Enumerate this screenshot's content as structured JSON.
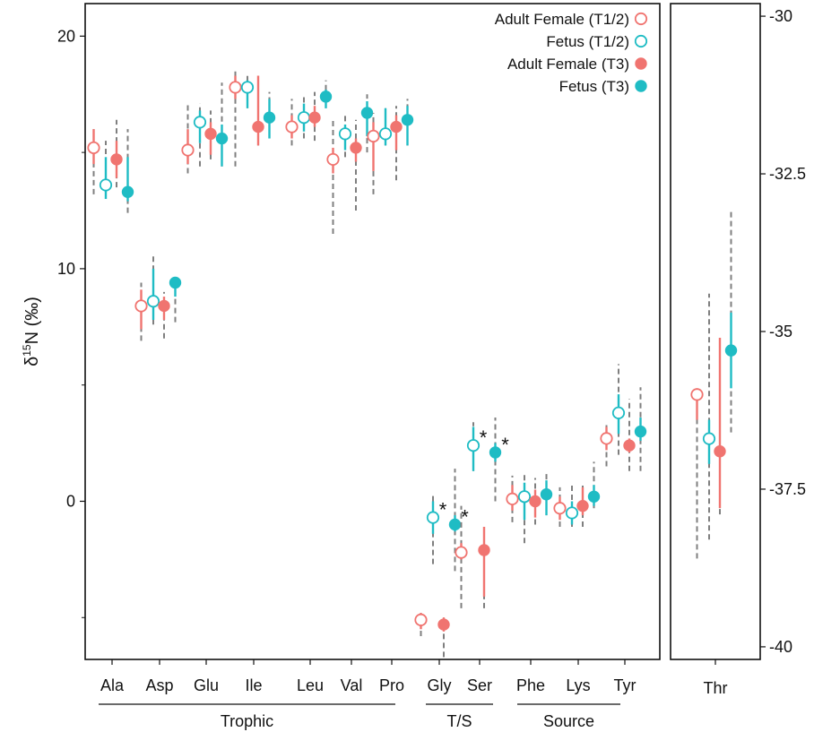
{
  "chart_data": {
    "type": "scatter",
    "ylabel_prefix": "δ",
    "ylabel_sup": "15",
    "ylabel_suffix": "N (‰)",
    "colors": {
      "adult": "#f07470",
      "fetus": "#1fbcc4",
      "range": "#7f7f7f"
    },
    "series": [
      {
        "name": "Adult Female (T1/2)",
        "color": "#f07470",
        "filled": false
      },
      {
        "name": "Fetus (T1/2)",
        "color": "#1fbcc4",
        "filled": false
      },
      {
        "name": "Adult Female (T3)",
        "color": "#f07470",
        "filled": true
      },
      {
        "name": "Fetus (T3)",
        "color": "#1fbcc4",
        "filled": true
      }
    ],
    "left_panel": {
      "ylim": [
        -6.8,
        21.4
      ],
      "yticks": [
        0,
        10,
        20
      ],
      "ytick_labels": [
        "0",
        "10",
        "20"
      ],
      "categories": [
        "Ala",
        "Asp",
        "Glu",
        "Ile",
        "Leu",
        "Val",
        "Pro",
        "Gly",
        "Ser",
        "Phe",
        "Lys",
        "Tyr"
      ],
      "groups": [
        {
          "label": "Trophic",
          "from": 0,
          "to": 6
        },
        {
          "label": "T/S",
          "from": 7,
          "to": 8
        },
        {
          "label": "Source",
          "from": 9,
          "to": 11
        }
      ],
      "points": [
        {
          "cat": 0,
          "s": 0,
          "y": 15.2,
          "lo": 14.5,
          "hi": 16.0,
          "rlo": 13.2,
          "rhi": 16.0
        },
        {
          "cat": 0,
          "s": 1,
          "y": 13.6,
          "lo": 13.0,
          "hi": 14.8,
          "rlo": 13.0,
          "rhi": 15.5
        },
        {
          "cat": 0,
          "s": 2,
          "y": 14.7,
          "lo": 13.9,
          "hi": 15.5,
          "rlo": 13.5,
          "rhi": 16.4
        },
        {
          "cat": 0,
          "s": 3,
          "y": 13.3,
          "lo": 12.9,
          "hi": 14.8,
          "rlo": 12.4,
          "rhi": 16.0
        },
        {
          "cat": 1,
          "s": 0,
          "y": 8.4,
          "lo": 7.4,
          "hi": 9.1,
          "rlo": 6.9,
          "rhi": 9.4
        },
        {
          "cat": 1,
          "s": 1,
          "y": 8.6,
          "lo": 7.8,
          "hi": 10.0,
          "rlo": 7.6,
          "rhi": 10.6
        },
        {
          "cat": 1,
          "s": 2,
          "y": 8.4,
          "lo": 7.8,
          "hi": 8.8,
          "rlo": 7.0,
          "rhi": 9.0
        },
        {
          "cat": 1,
          "s": 3,
          "y": 9.4,
          "lo": 8.8,
          "hi": 9.6,
          "rlo": 7.7,
          "rhi": 9.6
        },
        {
          "cat": 2,
          "s": 0,
          "y": 15.1,
          "lo": 14.5,
          "hi": 16.0,
          "rlo": 14.1,
          "rhi": 17.1
        },
        {
          "cat": 2,
          "s": 1,
          "y": 16.3,
          "lo": 15.4,
          "hi": 16.8,
          "rlo": 14.4,
          "rhi": 17.1
        },
        {
          "cat": 2,
          "s": 2,
          "y": 15.8,
          "lo": 14.9,
          "hi": 16.3,
          "rlo": 14.7,
          "rhi": 16.8
        },
        {
          "cat": 2,
          "s": 3,
          "y": 15.6,
          "lo": 14.4,
          "hi": 16.2,
          "rlo": 14.4,
          "rhi": 18.0
        },
        {
          "cat": 3,
          "s": 0,
          "y": 17.8,
          "lo": 17.3,
          "hi": 18.3,
          "rlo": 14.4,
          "rhi": 18.6
        },
        {
          "cat": 3,
          "s": 1,
          "y": 17.8,
          "lo": 16.9,
          "hi": 18.1,
          "rlo": 16.9,
          "rhi": 18.3
        },
        {
          "cat": 3,
          "s": 2,
          "y": 16.1,
          "lo": 15.3,
          "hi": 18.3,
          "rlo": 15.3,
          "rhi": 18.3
        },
        {
          "cat": 3,
          "s": 3,
          "y": 16.5,
          "lo": 15.6,
          "hi": 17.3,
          "rlo": 15.6,
          "rhi": 17.6
        },
        {
          "cat": 4,
          "s": 0,
          "y": 16.1,
          "lo": 15.6,
          "hi": 16.6,
          "rlo": 15.3,
          "rhi": 17.3
        },
        {
          "cat": 4,
          "s": 1,
          "y": 16.5,
          "lo": 15.9,
          "hi": 17.1,
          "rlo": 15.6,
          "rhi": 17.5
        },
        {
          "cat": 4,
          "s": 2,
          "y": 16.5,
          "lo": 16.1,
          "hi": 17.0,
          "rlo": 15.5,
          "rhi": 17.6
        },
        {
          "cat": 4,
          "s": 3,
          "y": 17.4,
          "lo": 16.9,
          "hi": 17.7,
          "rlo": 16.9,
          "rhi": 18.1
        },
        {
          "cat": 5,
          "s": 0,
          "y": 14.7,
          "lo": 14.1,
          "hi": 15.2,
          "rlo": 11.5,
          "rhi": 16.5
        },
        {
          "cat": 5,
          "s": 1,
          "y": 15.8,
          "lo": 15.1,
          "hi": 16.2,
          "rlo": 14.8,
          "rhi": 16.7
        },
        {
          "cat": 5,
          "s": 2,
          "y": 15.2,
          "lo": 14.6,
          "hi": 15.6,
          "rlo": 12.5,
          "rhi": 16.4
        },
        {
          "cat": 5,
          "s": 3,
          "y": 16.7,
          "lo": 15.7,
          "hi": 17.2,
          "rlo": 15.0,
          "rhi": 17.5
        },
        {
          "cat": 6,
          "s": 0,
          "y": 15.7,
          "lo": 14.2,
          "hi": 16.3,
          "rlo": 13.2,
          "rhi": 16.7
        },
        {
          "cat": 6,
          "s": 1,
          "y": 15.8,
          "lo": 15.3,
          "hi": 16.9,
          "rlo": 15.3,
          "rhi": 16.9
        },
        {
          "cat": 6,
          "s": 2,
          "y": 16.1,
          "lo": 15.1,
          "hi": 16.6,
          "rlo": 13.8,
          "rhi": 17.0
        },
        {
          "cat": 6,
          "s": 3,
          "y": 16.4,
          "lo": 15.3,
          "hi": 17.0,
          "rlo": 15.3,
          "rhi": 17.3
        },
        {
          "cat": 7,
          "s": 0,
          "y": -5.1,
          "lo": -5.5,
          "hi": -4.8,
          "rlo": -5.8,
          "rhi": -4.8
        },
        {
          "cat": 7,
          "s": 1,
          "y": -0.7,
          "lo": -1.4,
          "hi": 0.0,
          "rlo": -2.7,
          "rhi": 0.3
        },
        {
          "cat": 7,
          "s": 2,
          "y": -5.3,
          "lo": -5.6,
          "hi": -5.0,
          "rlo": -6.7,
          "rhi": -5.0
        },
        {
          "cat": 7,
          "s": 3,
          "y": -1.0,
          "lo": -1.3,
          "hi": -0.6,
          "rlo": -3.0,
          "rhi": 1.4
        },
        {
          "cat": 8,
          "s": 0,
          "y": -2.2,
          "lo": -2.5,
          "hi": -1.8,
          "rlo": -4.6,
          "rhi": -0.2
        },
        {
          "cat": 8,
          "s": 1,
          "y": 2.4,
          "lo": 1.3,
          "hi": 3.2,
          "rlo": 1.3,
          "rhi": 3.4
        },
        {
          "cat": 8,
          "s": 2,
          "y": -2.1,
          "lo": -4.1,
          "hi": -1.1,
          "rlo": -4.6,
          "rhi": -1.1
        },
        {
          "cat": 8,
          "s": 3,
          "y": 2.1,
          "lo": 1.7,
          "hi": 2.5,
          "rlo": 0.0,
          "rhi": 3.6
        },
        {
          "cat": 9,
          "s": 0,
          "y": 0.1,
          "lo": -0.4,
          "hi": 0.7,
          "rlo": -0.9,
          "rhi": 1.1
        },
        {
          "cat": 9,
          "s": 1,
          "y": 0.2,
          "lo": -0.8,
          "hi": 0.8,
          "rlo": -1.8,
          "rhi": 1.2
        },
        {
          "cat": 9,
          "s": 2,
          "y": 0.0,
          "lo": -0.7,
          "hi": 0.5,
          "rlo": -1.0,
          "rhi": 1.0
        },
        {
          "cat": 9,
          "s": 3,
          "y": 0.3,
          "lo": -0.6,
          "hi": 0.9,
          "rlo": -0.6,
          "rhi": 1.2
        },
        {
          "cat": 10,
          "s": 0,
          "y": -0.3,
          "lo": -0.8,
          "hi": 0.2,
          "rlo": -1.1,
          "rhi": 0.6
        },
        {
          "cat": 10,
          "s": 1,
          "y": -0.5,
          "lo": -1.0,
          "hi": 0.0,
          "rlo": -1.1,
          "rhi": 0.8
        },
        {
          "cat": 10,
          "s": 2,
          "y": -0.2,
          "lo": -0.6,
          "hi": 0.6,
          "rlo": -1.1,
          "rhi": 0.7
        },
        {
          "cat": 10,
          "s": 3,
          "y": 0.2,
          "lo": -0.2,
          "hi": 0.7,
          "rlo": -0.3,
          "rhi": 1.7
        },
        {
          "cat": 11,
          "s": 0,
          "y": 2.7,
          "lo": 2.2,
          "hi": 3.2,
          "rlo": 1.5,
          "rhi": 3.4
        },
        {
          "cat": 11,
          "s": 1,
          "y": 3.8,
          "lo": 2.9,
          "hi": 4.6,
          "rlo": 2.0,
          "rhi": 5.9
        },
        {
          "cat": 11,
          "s": 2,
          "y": 2.4,
          "lo": 2.1,
          "hi": 2.7,
          "rlo": 1.3,
          "rhi": 4.4
        },
        {
          "cat": 11,
          "s": 3,
          "y": 3.0,
          "lo": 2.6,
          "hi": 3.6,
          "rlo": 1.3,
          "rhi": 4.9
        }
      ],
      "annotations": [
        {
          "text": "*",
          "cat": 7,
          "s": 1,
          "y": -0.7
        },
        {
          "text": "*",
          "cat": 7,
          "s": 3,
          "y": -1.0
        },
        {
          "text": "*",
          "cat": 8,
          "s": 1,
          "y": 2.4
        },
        {
          "text": "*",
          "cat": 8,
          "s": 3,
          "y": 2.1
        }
      ]
    },
    "right_panel": {
      "ylim": [
        -40.2,
        -29.8
      ],
      "yticks": [
        -30,
        -32.5,
        -35,
        -37.5,
        -40
      ],
      "ytick_labels": [
        "-30",
        "-32.5",
        "-35",
        "-37.5",
        "-40"
      ],
      "categories": [
        "Thr"
      ],
      "points": [
        {
          "cat": 0,
          "s": 0,
          "y": -36.0,
          "lo": -36.4,
          "hi": -35.9,
          "rlo": -38.6,
          "rhi": -35.9
        },
        {
          "cat": 0,
          "s": 1,
          "y": -36.7,
          "lo": -37.1,
          "hi": -36.4,
          "rlo": -38.3,
          "rhi": -34.4
        },
        {
          "cat": 0,
          "s": 2,
          "y": -36.9,
          "lo": -37.8,
          "hi": -35.1,
          "rlo": -37.9,
          "rhi": -35.1
        },
        {
          "cat": 0,
          "s": 3,
          "y": -35.3,
          "lo": -35.9,
          "hi": -34.7,
          "rlo": -36.6,
          "rhi": -33.1
        }
      ]
    }
  }
}
